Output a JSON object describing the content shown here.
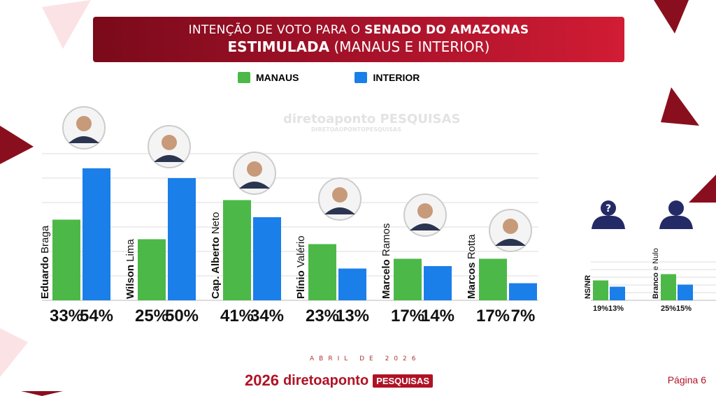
{
  "header": {
    "title_prefix": "INTENÇÃO DE VOTO PARA O ",
    "title_bold": "SENADO DO AMAZONAS",
    "subtitle_bold": "ESTIMULADA",
    "subtitle_rest": " (MANAUS E INTERIOR)"
  },
  "watermark": {
    "brand": "diretoaponto PESQUISAS",
    "url": "DIRETOAOPONTOPESQUISAS"
  },
  "colors": {
    "manaus": "#4cb848",
    "interior": "#1a7fe8",
    "accent": "#b01225",
    "icon": "#242a66"
  },
  "chart_data": [
    {
      "type": "bar",
      "series": [
        {
          "name": "MANAUS",
          "values": [
            33,
            25,
            41,
            23,
            17,
            17
          ]
        },
        {
          "name": "INTERIOR",
          "values": [
            54,
            50,
            34,
            13,
            14,
            7
          ]
        }
      ],
      "categories": [
        {
          "bold": "Eduardo",
          "rest": "Braga"
        },
        {
          "bold": "Wilson",
          "rest": "Lima"
        },
        {
          "bold": "Cap. Alberto",
          "rest": "Neto"
        },
        {
          "bold": "Plínio",
          "rest": "Valério"
        },
        {
          "bold": "Marcelo",
          "rest": "Ramos"
        },
        {
          "bold": "Marcos",
          "rest": "Rotta"
        }
      ],
      "labels": [
        [
          "33%",
          "54%"
        ],
        [
          "25%",
          "50%"
        ],
        [
          "41%",
          "34%"
        ],
        [
          "23%",
          "13%"
        ],
        [
          "17%",
          "14%"
        ],
        [
          "17%",
          "7%"
        ]
      ],
      "ylim": [
        0,
        60
      ],
      "grid": true,
      "legend": "top"
    },
    {
      "type": "bar",
      "categories": [
        {
          "bold": "NS/NR",
          "rest": ""
        },
        {
          "bold": "Branco",
          "rest": "e Nulo"
        }
      ],
      "series": [
        {
          "name": "MANAUS",
          "values": [
            19,
            25
          ]
        },
        {
          "name": "INTERIOR",
          "values": [
            13,
            15
          ]
        }
      ],
      "labels": [
        [
          "19%",
          "13%"
        ],
        [
          "25%",
          "15%"
        ]
      ],
      "icons": [
        "unknown-person-icon",
        "person-icon"
      ],
      "grid": true
    }
  ],
  "footer": {
    "date": "ABRIL DE 2026",
    "logo_year": "2026",
    "logo_brand": "diretoaponto",
    "logo_tag": "PESQUISAS",
    "page": "Página 6"
  }
}
